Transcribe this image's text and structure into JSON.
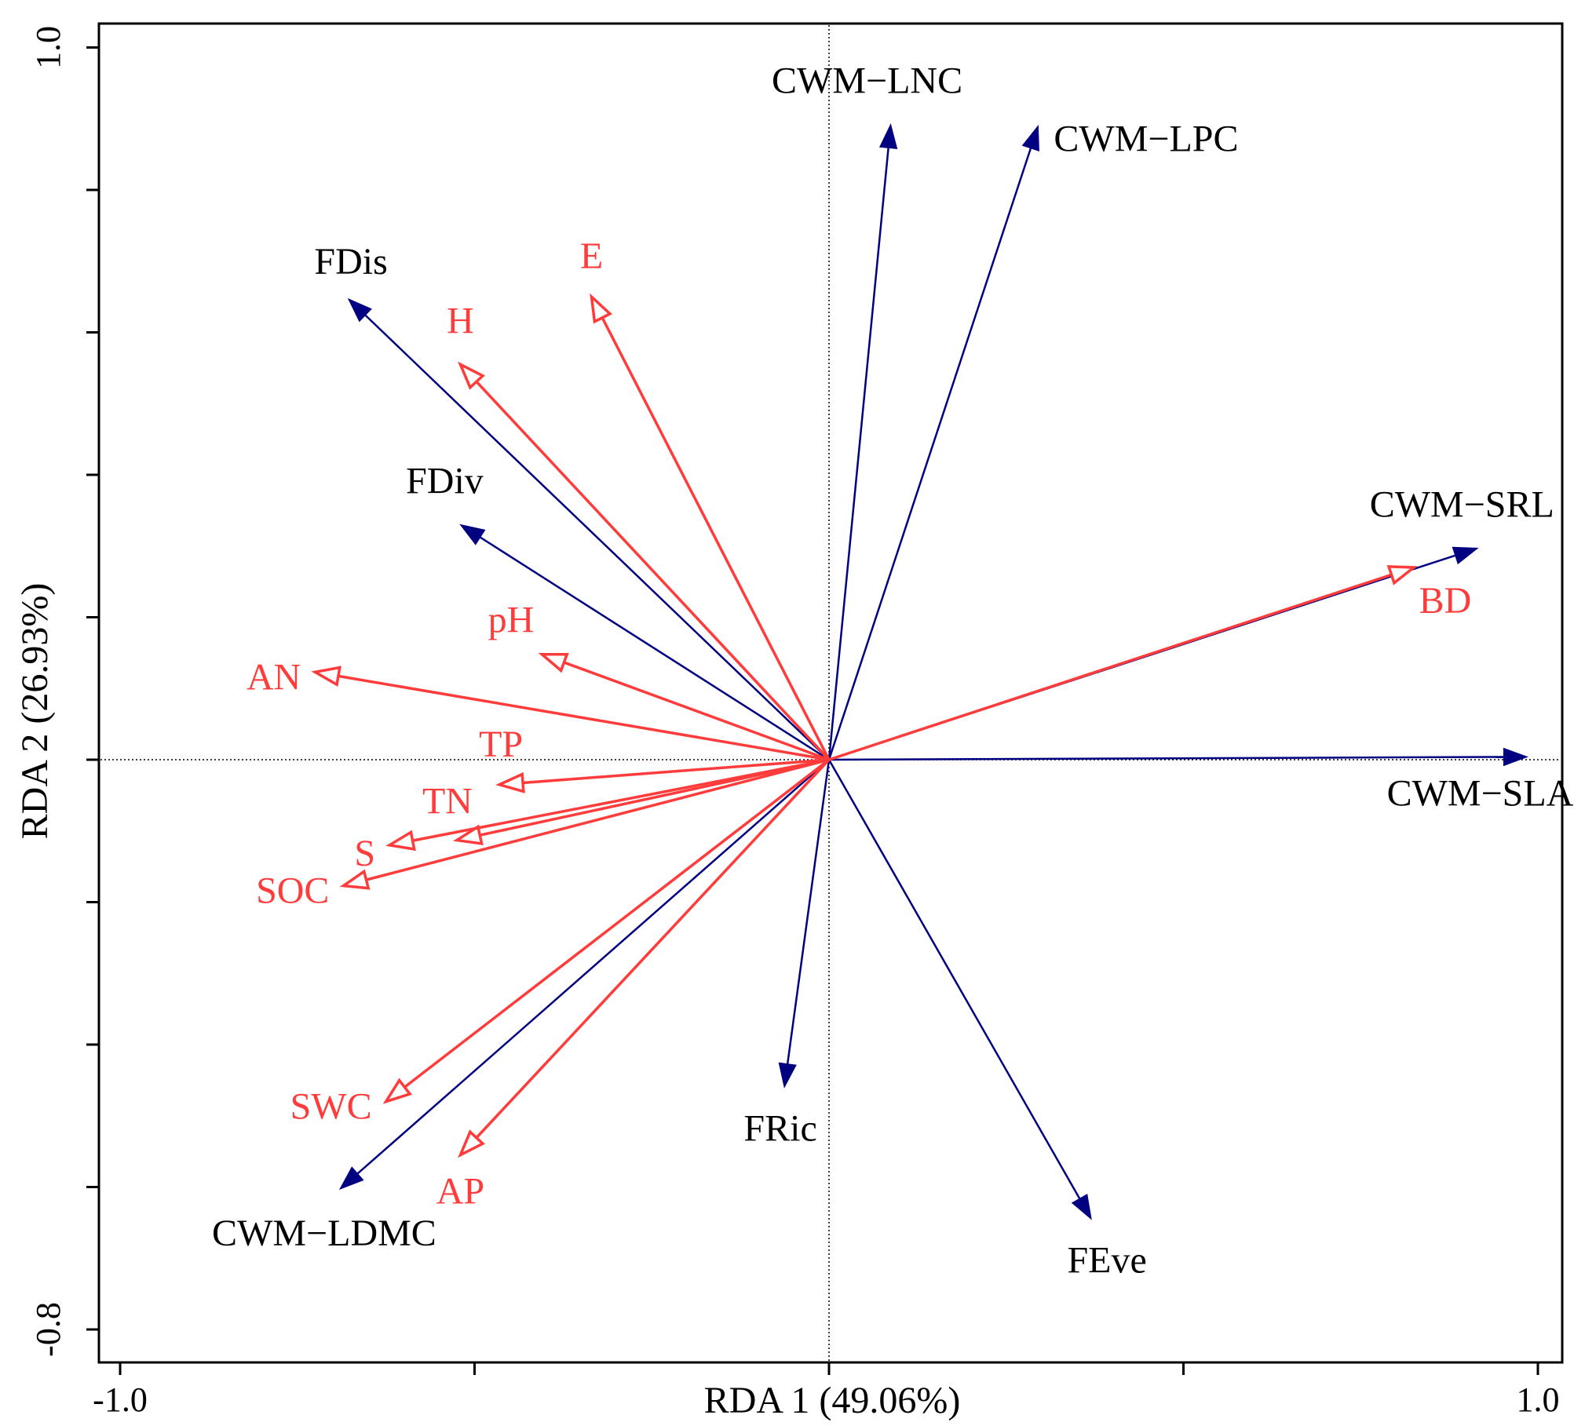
{
  "chart_data": {
    "type": "biplot",
    "xlabel": "RDA 1 (49.06%)",
    "ylabel": "RDA 2 (26.93%)",
    "xlim": [
      -1.0,
      1.0
    ],
    "ylim": [
      -0.8,
      1.0
    ],
    "x_tick_labels": [
      "-1.0",
      "1.0"
    ],
    "y_tick_labels": [
      "-0.8",
      "1.0"
    ],
    "x_ticks": [
      -1.0,
      -0.5,
      0.0,
      0.5,
      1.0
    ],
    "y_ticks": [
      -0.8,
      -0.6,
      -0.4,
      -0.2,
      0.0,
      0.2,
      0.4,
      0.6,
      0.8,
      1.0
    ],
    "reference_lines": {
      "x": 0,
      "y": 0
    },
    "series": [
      {
        "name": "response",
        "color": "#000080",
        "label_color": "#000000",
        "arrow_style": "filled",
        "vectors": [
          {
            "label": "CWM−LNC",
            "x": 0.087,
            "y": 0.892,
            "label_pos": "top"
          },
          {
            "label": "CWM−LPC",
            "x": 0.295,
            "y": 0.89,
            "label_pos": "right"
          },
          {
            "label": "FDis",
            "x": -0.678,
            "y": 0.647,
            "label_pos": "top-left"
          },
          {
            "label": "FDiv",
            "x": -0.52,
            "y": 0.33,
            "label_pos": "top"
          },
          {
            "label": "CWM−SRL",
            "x": 0.915,
            "y": 0.297,
            "label_pos": "top"
          },
          {
            "label": "CWM−SLA",
            "x": 0.985,
            "y": 0.004,
            "label_pos": "below"
          },
          {
            "label": "FRic",
            "x": -0.063,
            "y": -0.46,
            "label_pos": "below"
          },
          {
            "label": "FEve",
            "x": 0.37,
            "y": -0.645,
            "label_pos": "below"
          },
          {
            "label": "CWM−LDMC",
            "x": -0.69,
            "y": -0.603,
            "label_pos": "below"
          }
        ]
      },
      {
        "name": "explanatory",
        "color": "#ff3c3c",
        "label_color": "#ff3c3c",
        "arrow_style": "open",
        "vectors": [
          {
            "label": "E",
            "x": -0.335,
            "y": 0.65,
            "label_pos": "top"
          },
          {
            "label": "H",
            "x": -0.52,
            "y": 0.555,
            "label_pos": "top"
          },
          {
            "label": "pH",
            "x": -0.405,
            "y": 0.148,
            "label_pos": "top-left"
          },
          {
            "label": "AN",
            "x": -0.725,
            "y": 0.123,
            "label_pos": "left"
          },
          {
            "label": "TP",
            "x": -0.465,
            "y": -0.035,
            "label_pos": "top-left"
          },
          {
            "label": "TN",
            "x": -0.525,
            "y": -0.113,
            "label_pos": "top-left"
          },
          {
            "label": "S",
            "x": -0.62,
            "y": -0.12,
            "label_pos": "left"
          },
          {
            "label": "SOC",
            "x": -0.685,
            "y": -0.177,
            "label_pos": "left"
          },
          {
            "label": "SWC",
            "x": -0.625,
            "y": -0.48,
            "label_pos": "left"
          },
          {
            "label": "AP",
            "x": -0.52,
            "y": -0.555,
            "label_pos": "below"
          },
          {
            "label": "BD",
            "x": 0.825,
            "y": 0.27,
            "label_pos": "below"
          }
        ]
      }
    ]
  }
}
